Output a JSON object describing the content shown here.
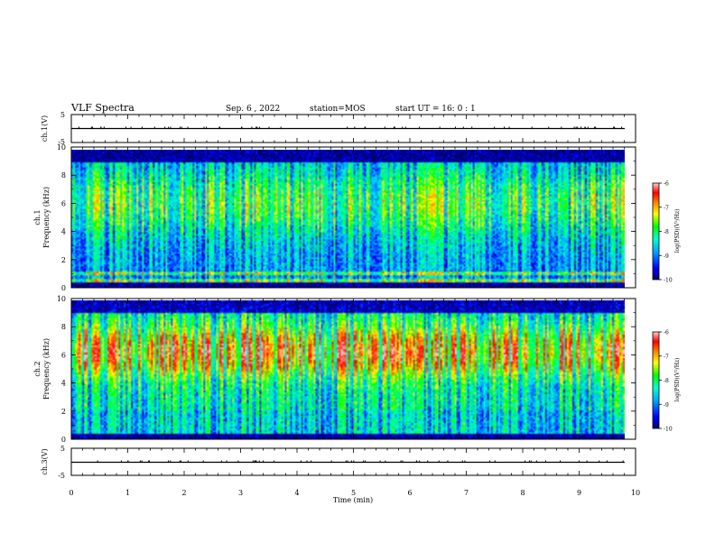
{
  "header": {
    "title": "VLF Spectra",
    "date": "Sep. 6 , 2022",
    "station": "station=MOS",
    "start": "start  UT =   16: 0  : 1"
  },
  "chart_data": [
    {
      "type": "line",
      "id": "ch1-waveform",
      "ylabel": "ch.1(V)",
      "ylim": [
        -5,
        5
      ],
      "xlim": [
        0,
        10
      ],
      "yticks": [
        "5",
        "-5"
      ],
      "series_level": 0
    },
    {
      "type": "heatmap",
      "id": "ch1-spectrogram",
      "ylabel_line1": "ch.1",
      "ylabel_line2": "Frequency (kHz)",
      "ylim": [
        0,
        10
      ],
      "xlim": [
        0,
        10
      ],
      "data_end_min": 9.8,
      "yticks": [
        "0",
        "2",
        "4",
        "6",
        "8",
        "10"
      ],
      "colorbar": {
        "label": "log(PSD)(V²/Hz)",
        "range": [
          -10,
          -6
        ],
        "ticks": [
          "-6",
          "-7",
          "-8",
          "-9",
          "-10"
        ]
      },
      "profile": "broadband"
    },
    {
      "type": "heatmap",
      "id": "ch2-spectrogram",
      "ylabel_line1": "ch.2",
      "ylabel_line2": "Frequency (kHz)",
      "ylim": [
        0,
        10
      ],
      "xlim": [
        0,
        10
      ],
      "data_end_min": 9.8,
      "yticks": [
        "0",
        "2",
        "4",
        "6",
        "8",
        "10"
      ],
      "colorbar": {
        "label": "log(PSD)(V²/Hz)",
        "range": [
          -10,
          -6
        ],
        "ticks": [
          "-6",
          "-7",
          "-8",
          "-9",
          "-10"
        ]
      },
      "profile": "peak-6kHz"
    },
    {
      "type": "line",
      "id": "ch3-waveform",
      "ylabel": "ch.3(V)",
      "ylim": [
        -5,
        5
      ],
      "xlim": [
        0,
        10
      ],
      "yticks": [
        "5",
        "-5"
      ],
      "series_level": 0
    }
  ],
  "xaxis": {
    "label": "Time  (min)",
    "ticks": [
      "0",
      "1",
      "2",
      "3",
      "4",
      "5",
      "6",
      "7",
      "8",
      "9",
      "10"
    ]
  },
  "colors": {
    "colormap": [
      "#000066",
      "#0000ff",
      "#00a0ff",
      "#00ffd0",
      "#00ff00",
      "#ffff00",
      "#ff8000",
      "#ff0000",
      "#ffc0c0"
    ]
  }
}
